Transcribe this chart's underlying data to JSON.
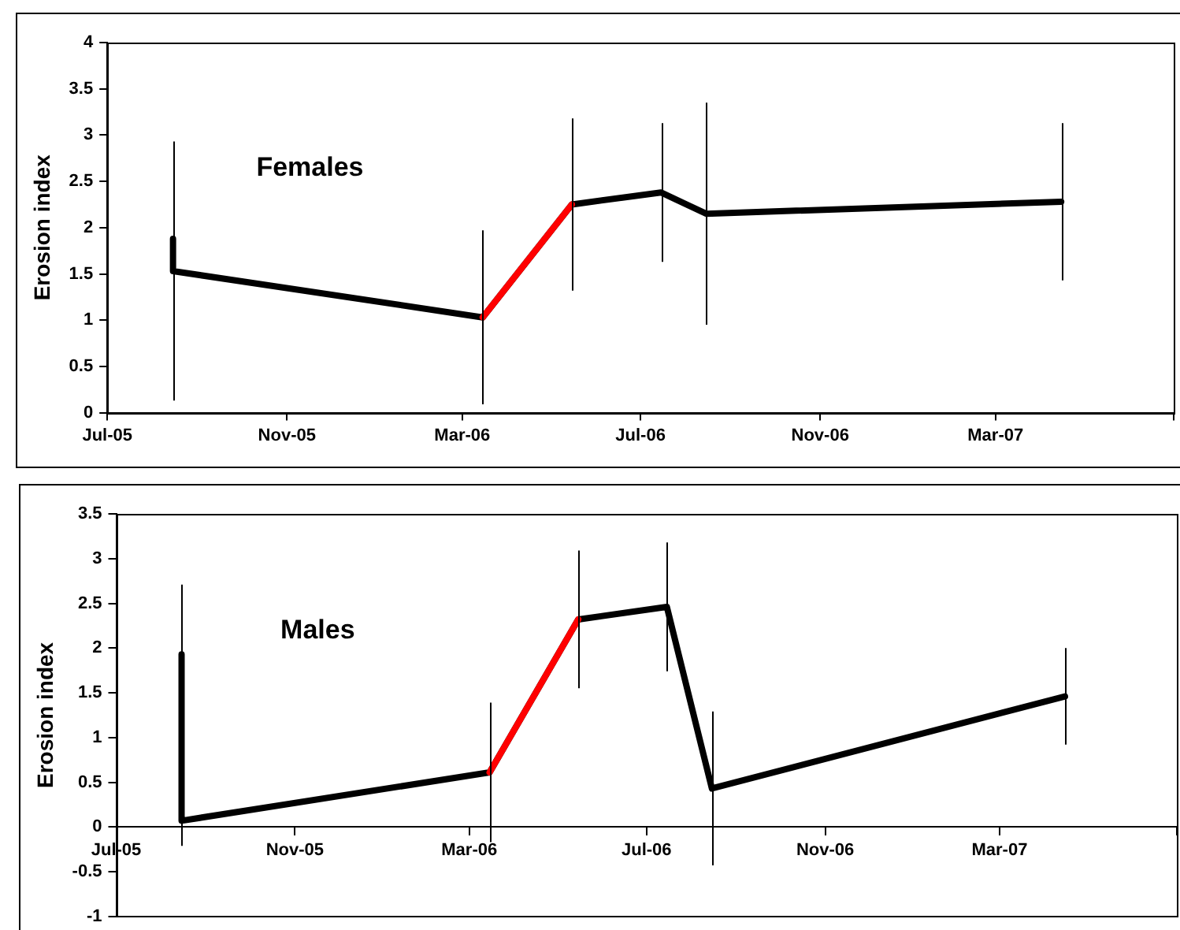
{
  "chart_data": [
    {
      "type": "line",
      "title": "Females",
      "ylabel": "Erosion index",
      "x": [
        "2005-08-15",
        "2005-08-15",
        "2006-03-15",
        "2006-05-15",
        "2006-07-15",
        "2006-08-15",
        "2007-04-15"
      ],
      "series": [
        {
          "color": "#000000",
          "values": [
            1.88,
            1.53,
            1.03,
            2.25,
            2.38,
            2.15,
            2.28
          ],
          "errors": [
            0.69,
            1.4,
            0.94,
            0.93,
            0.75,
            1.2,
            0.85
          ]
        },
        {
          "color": "#ff0000",
          "x": [
            "2006-03-15",
            "2006-05-15"
          ],
          "values": [
            1.03,
            2.25
          ]
        }
      ],
      "xlim": [
        "2005-07-01",
        "2007-07-01"
      ],
      "xticks": [
        {
          "value": "2005-07-01",
          "label": "Jul-05"
        },
        {
          "value": "2005-11-01",
          "label": "Nov-05"
        },
        {
          "value": "2006-03-01",
          "label": "Mar-06"
        },
        {
          "value": "2006-07-01",
          "label": "Jul-06"
        },
        {
          "value": "2006-11-01",
          "label": "Nov-06"
        },
        {
          "value": "2007-03-01",
          "label": "Mar-07"
        },
        {
          "value": "2007-07-01",
          "label": null
        }
      ],
      "ylim": [
        0,
        4
      ],
      "yticks": [
        0,
        0.5,
        1,
        1.5,
        2,
        2.5,
        3,
        3.5,
        4
      ],
      "grid": false,
      "legend": false
    },
    {
      "type": "line",
      "title": "Males",
      "ylabel": "Erosion index",
      "x": [
        "2005-08-15",
        "2005-08-15",
        "2006-03-15",
        "2006-05-15",
        "2006-07-15",
        "2006-08-15",
        "2007-04-15"
      ],
      "series": [
        {
          "color": "#000000",
          "values": [
            1.93,
            0.07,
            0.61,
            2.32,
            2.46,
            0.43,
            1.46
          ],
          "errors": [
            0.78,
            0.28,
            0.78,
            0.77,
            0.72,
            0.86,
            0.54
          ]
        },
        {
          "color": "#ff0000",
          "x": [
            "2006-03-15",
            "2006-05-15"
          ],
          "values": [
            0.61,
            2.32
          ]
        }
      ],
      "xlim": [
        "2005-07-01",
        "2007-07-01"
      ],
      "xticks": [
        {
          "value": "2005-07-01",
          "label": "Jul-05"
        },
        {
          "value": "2005-11-01",
          "label": "Nov-05"
        },
        {
          "value": "2006-03-01",
          "label": "Mar-06"
        },
        {
          "value": "2006-07-01",
          "label": "Jul-06"
        },
        {
          "value": "2006-11-01",
          "label": "Nov-06"
        },
        {
          "value": "2007-03-01",
          "label": "Mar-07"
        },
        {
          "value": "2007-07-01",
          "label": null
        }
      ],
      "ylim": [
        -1,
        3.5
      ],
      "yticks": [
        -1,
        -0.5,
        0,
        0.5,
        1,
        1.5,
        2,
        2.5,
        3,
        3.5
      ],
      "grid": false,
      "legend": false
    }
  ]
}
